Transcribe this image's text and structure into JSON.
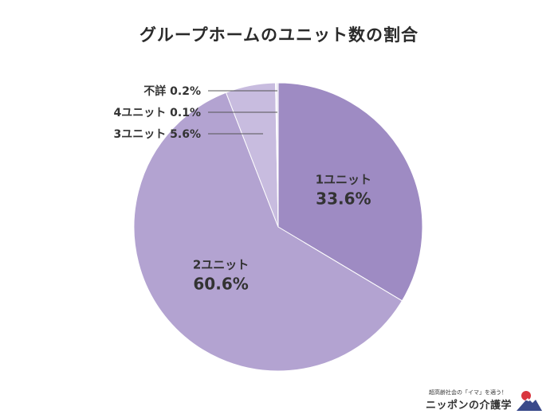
{
  "chart_data": {
    "type": "pie",
    "title": "グループホームのユニット数の割合",
    "start": "12 o'clock",
    "direction": "clockwise",
    "slices": [
      {
        "name": "1ユニット",
        "value": 33.6,
        "label_value": "33.6%",
        "color": "#9e8bc3",
        "label_placement": "inside"
      },
      {
        "name": "2ユニット",
        "value": 60.6,
        "label_value": "60.6%",
        "color": "#b3a3d1",
        "label_placement": "inside"
      },
      {
        "name": "3ユニット",
        "value": 5.6,
        "label_value": "5.6%",
        "color": "#c8bcdf",
        "label_placement": "leader-line"
      },
      {
        "name": "4ユニット",
        "value": 0.1,
        "label_value": "0.1%",
        "color": "#d6cde8",
        "label_placement": "leader-line"
      },
      {
        "name": "不詳",
        "value": 0.2,
        "label_value": "0.2%",
        "color": "#e2dcef",
        "label_placement": "leader-line"
      }
    ]
  },
  "branding": {
    "tagline": "超高齢社会の「イマ」を適う！",
    "name": "ニッポンの介護学",
    "logo_icon": "mountain-sun-logo"
  },
  "colors": {
    "title_text": "#2a2a2a",
    "label_text": "#333333",
    "leader_line": "#555555"
  }
}
